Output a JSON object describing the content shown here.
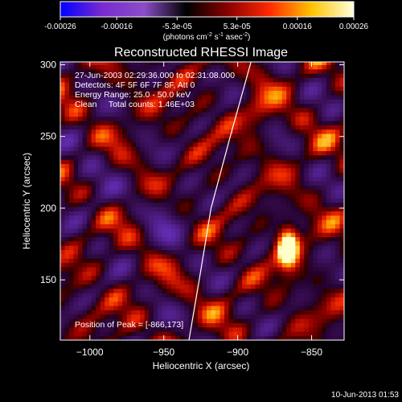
{
  "colorbar": {
    "tick_labels": [
      "-0.00026",
      "-0.00016",
      "-5.3e-05",
      "5.3e-05",
      "0.00016",
      "0.00026"
    ],
    "tick_values": [
      -0.00026,
      -0.00016,
      -5.3e-05,
      5.3e-05,
      0.00016,
      0.00026
    ],
    "range": [
      -0.00026,
      0.00026
    ],
    "units_main": "(photons cm",
    "units_sup1": "-2",
    "units_mid": " s",
    "units_sup2": "-1",
    "units_end": " asec",
    "units_sup3": "-2",
    "units_close": ")",
    "colors": [
      "#0000ff",
      "#7a2ad0",
      "#8a4ec8",
      "#000000",
      "#8a0000",
      "#ff2a00",
      "#ffc400",
      "#ffffe0"
    ]
  },
  "chart_data": {
    "type": "heatmap",
    "title": "Reconstructed RHESSI Image",
    "xlabel": "Heliocentric X (arcsec)",
    "ylabel": "Heliocentric Y (arcsec)",
    "xlim": [
      -1020,
      -828
    ],
    "ylim": [
      108,
      302
    ],
    "x_ticks": [
      -1000,
      -950,
      -900,
      -850
    ],
    "y_ticks": [
      150,
      200,
      250,
      300
    ],
    "x_tick_labels": [
      "−1000",
      "−950",
      "−900",
      "−850"
    ],
    "y_tick_labels": [
      "150",
      "200",
      "250",
      "300"
    ],
    "annotations": [
      "27-Jun-2003 02:29:36.000 to 02:31:08.000",
      "Detectors: 4F 5F 6F 7F 8F, Att 0",
      "Energy Range: 25.0 - 50.0 keV",
      "Clean     Total counts: 1.46E+03"
    ],
    "peak_label": "Position of Peak = [-866,173]",
    "peak": [
      -866,
      173
    ],
    "limb_curve": [
      [
        -933,
        108
      ],
      [
        -926,
        150
      ],
      [
        -918,
        200
      ],
      [
        -905,
        250
      ],
      [
        -891,
        302
      ]
    ],
    "limb_color": "#ffffff"
  },
  "footer": {
    "timestamp": "10-Jun-2013 01:53"
  }
}
